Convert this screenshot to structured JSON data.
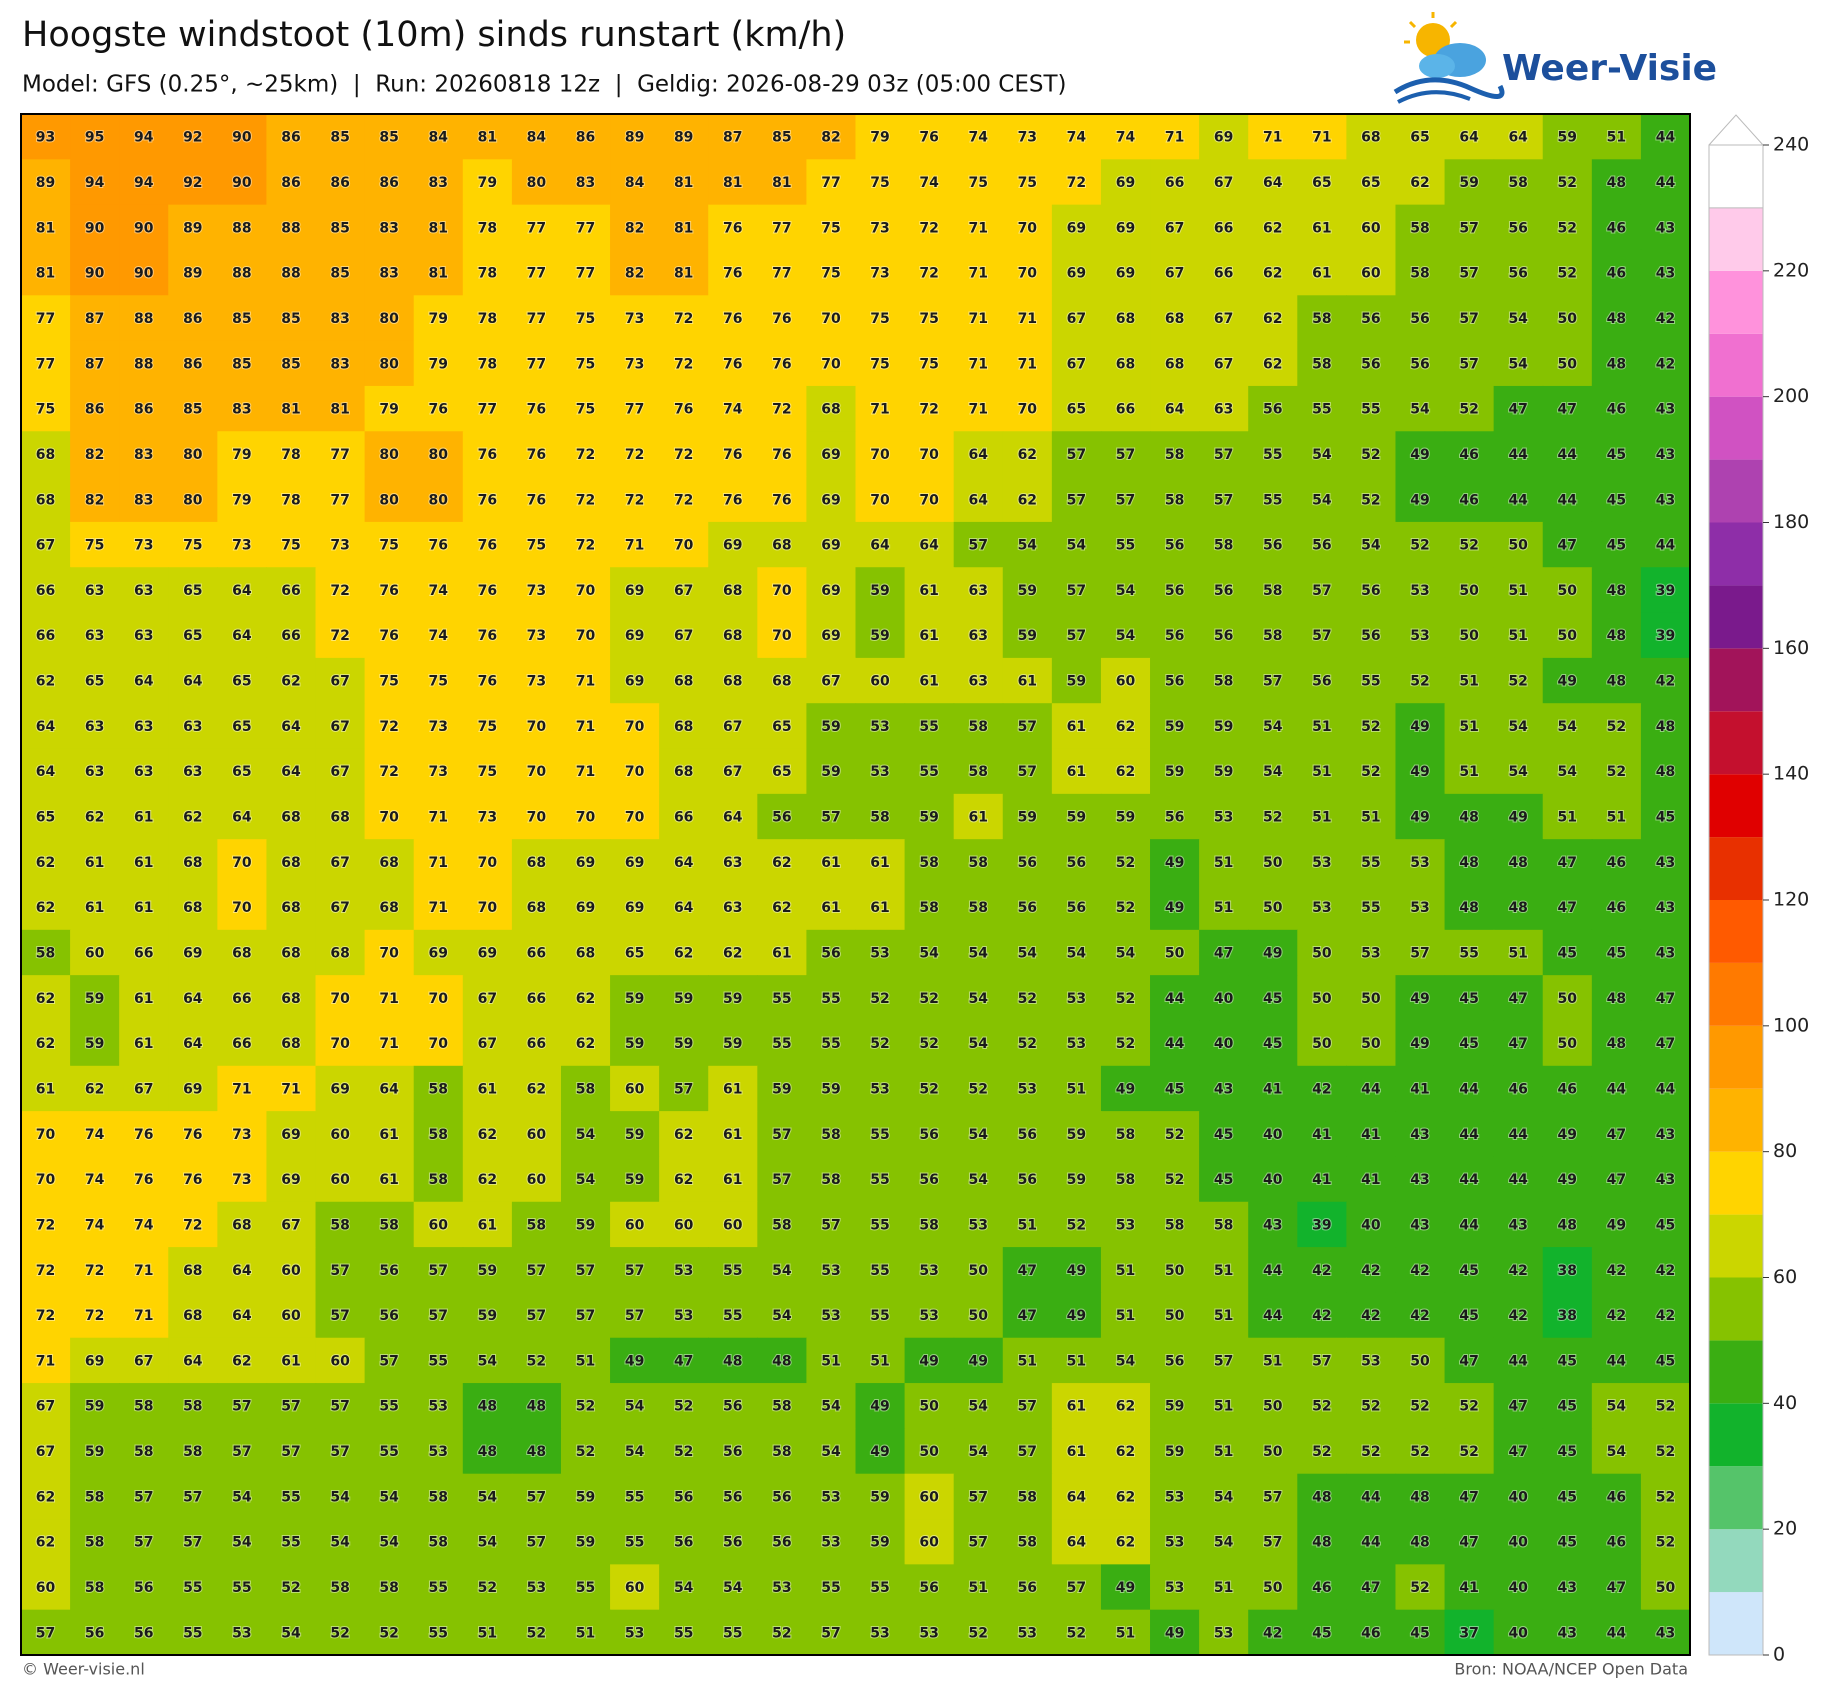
{
  "header": {
    "title": "Hoogste windstoot (10m) sinds runstart (km/h)",
    "subtitle": "Model: GFS (0.25°, ~25km)  |  Run: 20260818 12z  |  Geldig: 2026-08-29 03z (05:00 CEST)",
    "logo": "Weer-Visie"
  },
  "grid": {
    "rows": [
      [
        93,
        95,
        94,
        92,
        90,
        86,
        85,
        85,
        84,
        81,
        84,
        86,
        89,
        89,
        87,
        85,
        82,
        79,
        76,
        74,
        73,
        74,
        74,
        71,
        69,
        71,
        71,
        68,
        65,
        64,
        64,
        59,
        51,
        44
      ],
      [
        89,
        94,
        94,
        92,
        90,
        86,
        86,
        86,
        83,
        79,
        80,
        83,
        84,
        81,
        81,
        81,
        77,
        75,
        74,
        75,
        75,
        72,
        69,
        66,
        67,
        64,
        65,
        65,
        62,
        59,
        58,
        52,
        48,
        44
      ],
      [
        81,
        90,
        90,
        89,
        88,
        88,
        85,
        83,
        81,
        78,
        77,
        77,
        82,
        81,
        76,
        77,
        75,
        73,
        72,
        71,
        70,
        69,
        69,
        67,
        66,
        62,
        61,
        60,
        58,
        57,
        56,
        52,
        46,
        43
      ],
      [
        81,
        90,
        90,
        89,
        88,
        88,
        85,
        83,
        81,
        78,
        77,
        77,
        82,
        81,
        76,
        77,
        75,
        73,
        72,
        71,
        70,
        69,
        69,
        67,
        66,
        62,
        61,
        60,
        58,
        57,
        56,
        52,
        46,
        43
      ],
      [
        77,
        87,
        88,
        86,
        85,
        85,
        83,
        80,
        79,
        78,
        77,
        75,
        73,
        72,
        76,
        76,
        70,
        75,
        75,
        71,
        71,
        67,
        68,
        68,
        67,
        62,
        58,
        56,
        56,
        57,
        54,
        50,
        48,
        42
      ],
      [
        77,
        87,
        88,
        86,
        85,
        85,
        83,
        80,
        79,
        78,
        77,
        75,
        73,
        72,
        76,
        76,
        70,
        75,
        75,
        71,
        71,
        67,
        68,
        68,
        67,
        62,
        58,
        56,
        56,
        57,
        54,
        50,
        48,
        42
      ],
      [
        75,
        86,
        86,
        85,
        83,
        81,
        81,
        79,
        76,
        77,
        76,
        75,
        77,
        76,
        74,
        72,
        68,
        71,
        72,
        71,
        70,
        65,
        66,
        64,
        63,
        56,
        55,
        55,
        54,
        52,
        47,
        47,
        46,
        43
      ],
      [
        68,
        82,
        83,
        80,
        79,
        78,
        77,
        80,
        80,
        76,
        76,
        72,
        72,
        72,
        76,
        76,
        69,
        70,
        70,
        64,
        62,
        57,
        57,
        58,
        57,
        55,
        54,
        52,
        49,
        46,
        44,
        44,
        45,
        43
      ],
      [
        68,
        82,
        83,
        80,
        79,
        78,
        77,
        80,
        80,
        76,
        76,
        72,
        72,
        72,
        76,
        76,
        69,
        70,
        70,
        64,
        62,
        57,
        57,
        58,
        57,
        55,
        54,
        52,
        49,
        46,
        44,
        44,
        45,
        43
      ],
      [
        67,
        75,
        73,
        75,
        73,
        75,
        73,
        75,
        76,
        76,
        75,
        72,
        71,
        70,
        69,
        68,
        69,
        64,
        64,
        57,
        54,
        54,
        55,
        56,
        58,
        56,
        56,
        54,
        52,
        52,
        50,
        47,
        45,
        44
      ],
      [
        66,
        63,
        63,
        65,
        64,
        66,
        72,
        76,
        74,
        76,
        73,
        70,
        69,
        67,
        68,
        70,
        69,
        59,
        61,
        63,
        59,
        57,
        54,
        56,
        56,
        58,
        57,
        56,
        53,
        50,
        51,
        50,
        48,
        39
      ],
      [
        66,
        63,
        63,
        65,
        64,
        66,
        72,
        76,
        74,
        76,
        73,
        70,
        69,
        67,
        68,
        70,
        69,
        59,
        61,
        63,
        59,
        57,
        54,
        56,
        56,
        58,
        57,
        56,
        53,
        50,
        51,
        50,
        48,
        39
      ],
      [
        62,
        65,
        64,
        64,
        65,
        62,
        67,
        75,
        75,
        76,
        73,
        71,
        69,
        68,
        68,
        68,
        67,
        60,
        61,
        63,
        61,
        59,
        60,
        56,
        58,
        57,
        56,
        55,
        52,
        51,
        52,
        49,
        48,
        42
      ],
      [
        64,
        63,
        63,
        63,
        65,
        64,
        67,
        72,
        73,
        75,
        70,
        71,
        70,
        68,
        67,
        65,
        59,
        53,
        55,
        58,
        57,
        61,
        62,
        59,
        59,
        54,
        51,
        52,
        49,
        51,
        54,
        54,
        52,
        48
      ],
      [
        64,
        63,
        63,
        63,
        65,
        64,
        67,
        72,
        73,
        75,
        70,
        71,
        70,
        68,
        67,
        65,
        59,
        53,
        55,
        58,
        57,
        61,
        62,
        59,
        59,
        54,
        51,
        52,
        49,
        51,
        54,
        54,
        52,
        48
      ],
      [
        65,
        62,
        61,
        62,
        64,
        68,
        68,
        70,
        71,
        73,
        70,
        70,
        70,
        66,
        64,
        56,
        57,
        58,
        59,
        61,
        59,
        59,
        59,
        56,
        53,
        52,
        51,
        51,
        49,
        48,
        49,
        51,
        51,
        45
      ],
      [
        62,
        61,
        61,
        68,
        70,
        68,
        67,
        68,
        71,
        70,
        68,
        69,
        69,
        64,
        63,
        62,
        61,
        61,
        58,
        58,
        56,
        56,
        52,
        49,
        51,
        50,
        53,
        55,
        53,
        48,
        48,
        47,
        46,
        43
      ],
      [
        62,
        61,
        61,
        68,
        70,
        68,
        67,
        68,
        71,
        70,
        68,
        69,
        69,
        64,
        63,
        62,
        61,
        61,
        58,
        58,
        56,
        56,
        52,
        49,
        51,
        50,
        53,
        55,
        53,
        48,
        48,
        47,
        46,
        43
      ],
      [
        58,
        60,
        66,
        69,
        68,
        68,
        68,
        70,
        69,
        69,
        66,
        68,
        65,
        62,
        62,
        61,
        56,
        53,
        54,
        54,
        54,
        54,
        54,
        50,
        47,
        49,
        50,
        53,
        57,
        55,
        51,
        45,
        45,
        43
      ],
      [
        62,
        59,
        61,
        64,
        66,
        68,
        70,
        71,
        70,
        67,
        66,
        62,
        59,
        59,
        59,
        55,
        55,
        52,
        52,
        54,
        52,
        53,
        52,
        44,
        40,
        45,
        50,
        50,
        49,
        45,
        47,
        50,
        48,
        47
      ],
      [
        62,
        59,
        61,
        64,
        66,
        68,
        70,
        71,
        70,
        67,
        66,
        62,
        59,
        59,
        59,
        55,
        55,
        52,
        52,
        54,
        52,
        53,
        52,
        44,
        40,
        45,
        50,
        50,
        49,
        45,
        47,
        50,
        48,
        47
      ],
      [
        61,
        62,
        67,
        69,
        71,
        71,
        69,
        64,
        58,
        61,
        62,
        58,
        60,
        57,
        61,
        59,
        59,
        53,
        52,
        52,
        53,
        51,
        49,
        45,
        43,
        41,
        42,
        44,
        41,
        44,
        46,
        46,
        44,
        44
      ],
      [
        70,
        74,
        76,
        76,
        73,
        69,
        60,
        61,
        58,
        62,
        60,
        54,
        59,
        62,
        61,
        57,
        58,
        55,
        56,
        54,
        56,
        59,
        58,
        52,
        45,
        40,
        41,
        41,
        43,
        44,
        44,
        49,
        47,
        43
      ],
      [
        70,
        74,
        76,
        76,
        73,
        69,
        60,
        61,
        58,
        62,
        60,
        54,
        59,
        62,
        61,
        57,
        58,
        55,
        56,
        54,
        56,
        59,
        58,
        52,
        45,
        40,
        41,
        41,
        43,
        44,
        44,
        49,
        47,
        43
      ],
      [
        72,
        74,
        74,
        72,
        68,
        67,
        58,
        58,
        60,
        61,
        58,
        59,
        60,
        60,
        60,
        58,
        57,
        55,
        58,
        53,
        51,
        52,
        53,
        58,
        58,
        43,
        39,
        40,
        43,
        44,
        43,
        48,
        49,
        45
      ],
      [
        72,
        72,
        71,
        68,
        64,
        60,
        57,
        56,
        57,
        59,
        57,
        57,
        57,
        53,
        55,
        54,
        53,
        55,
        53,
        50,
        47,
        49,
        51,
        50,
        51,
        44,
        42,
        42,
        42,
        45,
        42,
        38,
        42,
        42
      ],
      [
        72,
        72,
        71,
        68,
        64,
        60,
        57,
        56,
        57,
        59,
        57,
        57,
        57,
        53,
        55,
        54,
        53,
        55,
        53,
        50,
        47,
        49,
        51,
        50,
        51,
        44,
        42,
        42,
        42,
        45,
        42,
        38,
        42,
        42
      ],
      [
        71,
        69,
        67,
        64,
        62,
        61,
        60,
        57,
        55,
        54,
        52,
        51,
        49,
        47,
        48,
        48,
        51,
        51,
        49,
        49,
        51,
        51,
        54,
        56,
        57,
        51,
        57,
        53,
        50,
        47,
        44,
        45,
        44,
        45
      ],
      [
        67,
        59,
        58,
        58,
        57,
        57,
        57,
        55,
        53,
        48,
        48,
        52,
        54,
        52,
        56,
        58,
        54,
        49,
        50,
        54,
        57,
        61,
        62,
        59,
        51,
        50,
        52,
        52,
        52,
        52,
        47,
        45,
        54,
        52
      ],
      [
        67,
        59,
        58,
        58,
        57,
        57,
        57,
        55,
        53,
        48,
        48,
        52,
        54,
        52,
        56,
        58,
        54,
        49,
        50,
        54,
        57,
        61,
        62,
        59,
        51,
        50,
        52,
        52,
        52,
        52,
        47,
        45,
        54,
        52
      ],
      [
        62,
        58,
        57,
        57,
        54,
        55,
        54,
        54,
        58,
        54,
        57,
        59,
        55,
        56,
        56,
        56,
        53,
        59,
        60,
        57,
        58,
        64,
        62,
        53,
        54,
        57,
        48,
        44,
        48,
        47,
        40,
        45,
        46,
        52
      ],
      [
        62,
        58,
        57,
        57,
        54,
        55,
        54,
        54,
        58,
        54,
        57,
        59,
        55,
        56,
        56,
        56,
        53,
        59,
        60,
        57,
        58,
        64,
        62,
        53,
        54,
        57,
        48,
        44,
        48,
        47,
        40,
        45,
        46,
        52
      ],
      [
        60,
        58,
        56,
        55,
        55,
        52,
        58,
        58,
        55,
        52,
        53,
        55,
        60,
        54,
        54,
        53,
        55,
        55,
        56,
        51,
        56,
        57,
        49,
        53,
        51,
        50,
        46,
        47,
        52,
        41,
        40,
        43,
        47,
        50
      ],
      [
        57,
        56,
        56,
        55,
        53,
        54,
        52,
        52,
        55,
        51,
        52,
        51,
        53,
        55,
        55,
        52,
        57,
        53,
        53,
        52,
        53,
        52,
        51,
        49,
        53,
        42,
        45,
        46,
        45,
        37,
        40,
        43,
        44,
        43
      ]
    ]
  },
  "colorbar": {
    "lim": [
      0,
      240
    ],
    "ticks": [
      0,
      20,
      40,
      60,
      80,
      100,
      120,
      140,
      160,
      180,
      200,
      220,
      240
    ],
    "colors": [
      "#cfe6fa",
      "#93d9bd",
      "#55c46a",
      "#12b32c",
      "#3aae12",
      "#86c200",
      "#cbd600",
      "#ffd400",
      "#ffb300",
      "#ff9900",
      "#ff7a00",
      "#ff5a00",
      "#e83000",
      "#e00000",
      "#c4102e",
      "#a2145a",
      "#7a1a8c",
      "#8e2ea8",
      "#ae42b0",
      "#d052c2",
      "#f070d0",
      "#ff92dc",
      "#ffcaea",
      "#ffffff"
    ]
  },
  "footer": {
    "left": "© Weer-visie.nl",
    "right": "Bron: NOAA/NCEP Open Data"
  }
}
